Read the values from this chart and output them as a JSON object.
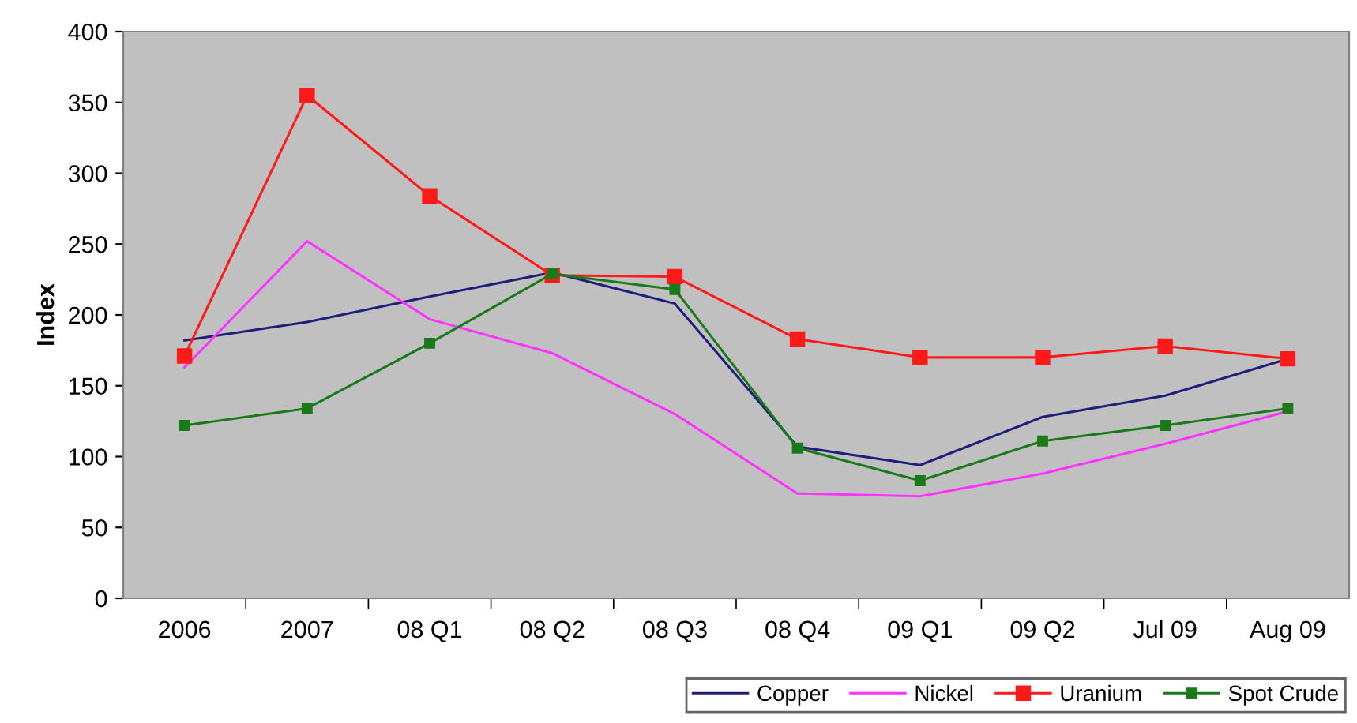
{
  "chart_data": {
    "type": "line",
    "ylabel": "Index",
    "categories": [
      "2006",
      "2007",
      "08 Q1",
      "08 Q2",
      "08 Q3",
      "08 Q4",
      "09 Q1",
      "09 Q2",
      "Jul 09",
      "Aug 09"
    ],
    "series": [
      {
        "name": "Copper",
        "color": "#1f1f7a",
        "marker": "none",
        "values": [
          182,
          195,
          213,
          230,
          208,
          107,
          94,
          128,
          143,
          169
        ]
      },
      {
        "name": "Nickel",
        "color": "#ff33ff",
        "marker": "none",
        "values": [
          163,
          252,
          197,
          173,
          130,
          74,
          72,
          88,
          109,
          132
        ]
      },
      {
        "name": "Uranium",
        "color": "#ff1a1a",
        "marker": "square",
        "values": [
          171,
          355,
          284,
          228,
          227,
          183,
          170,
          170,
          178,
          169
        ]
      },
      {
        "name": "Spot Crude",
        "color": "#1a7a1a",
        "marker": "square",
        "values": [
          122,
          134,
          180,
          229,
          218,
          106,
          83,
          111,
          122,
          134
        ]
      }
    ],
    "ylim": [
      0,
      400
    ],
    "yticks": [
      0,
      50,
      100,
      150,
      200,
      250,
      300,
      350,
      400
    ],
    "grid": false,
    "legend": "bottom right",
    "line_style": "solid"
  }
}
